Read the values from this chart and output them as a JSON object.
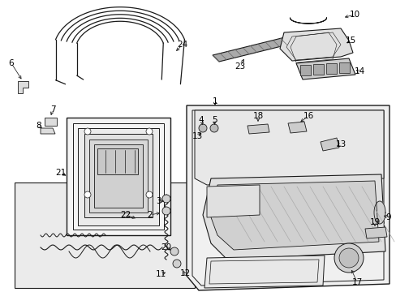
{
  "background_color": "#ffffff",
  "line_color": "#1a1a1a",
  "text_color": "#000000",
  "label_fontsize": 7.5,
  "fig_w": 4.89,
  "fig_h": 3.6,
  "dpi": 100
}
